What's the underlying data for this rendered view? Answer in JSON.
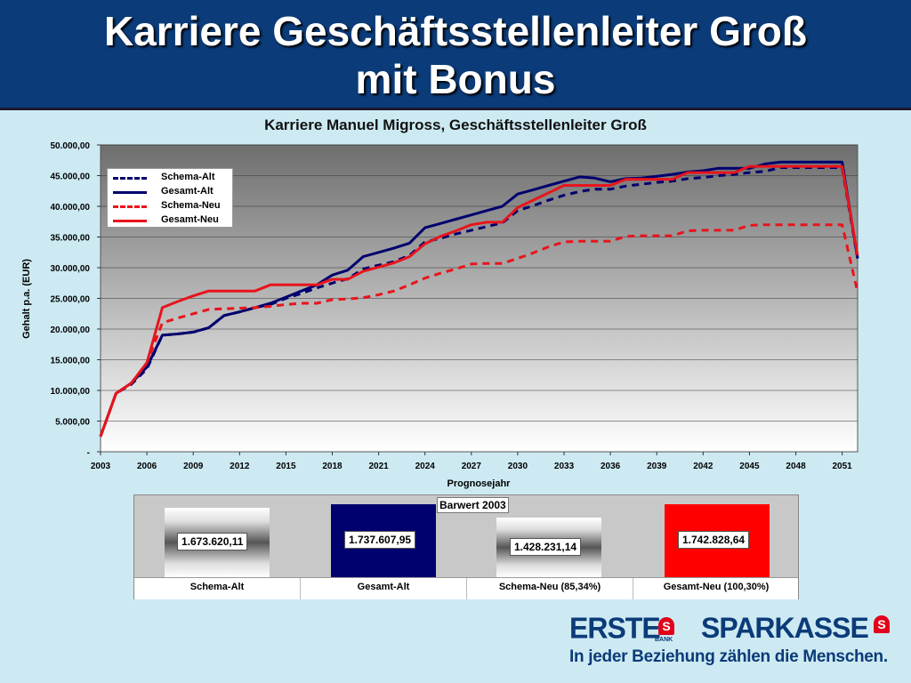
{
  "slide": {
    "title_line1": "Karriere Geschäftsstellenleiter Groß",
    "title_line2": "mit Bonus"
  },
  "colors": {
    "header_bg": "#0b3b78",
    "slide_bg": "#cdeaf3",
    "navy": "#00006e",
    "red": "#e8141c"
  },
  "chart_data": [
    {
      "type": "line",
      "title": "Karriere Manuel Migross, Geschäftsstellenleiter Groß",
      "xlabel": "Prognosejahr",
      "ylabel": "Gehalt p.a. (EUR)",
      "ylim": [
        0,
        50000
      ],
      "xlim": [
        2003,
        2052
      ],
      "x_ticks": [
        "2003",
        "2006",
        "2009",
        "2012",
        "2015",
        "2018",
        "2021",
        "2024",
        "2027",
        "2030",
        "2033",
        "2036",
        "2039",
        "2042",
        "2045",
        "2048",
        "2051"
      ],
      "y_ticks": [
        "-",
        "5.000,00",
        "10.000,00",
        "15.000,00",
        "20.000,00",
        "25.000,00",
        "30.000,00",
        "35.000,00",
        "40.000,00",
        "45.000,00",
        "50.000,00"
      ],
      "grid": true,
      "legend_position": "top-left",
      "x": [
        2003,
        2004,
        2005,
        2006,
        2007,
        2008,
        2009,
        2010,
        2011,
        2012,
        2013,
        2014,
        2015,
        2016,
        2017,
        2018,
        2019,
        2020,
        2021,
        2022,
        2023,
        2024,
        2025,
        2026,
        2027,
        2028,
        2029,
        2030,
        2031,
        2032,
        2033,
        2034,
        2035,
        2036,
        2037,
        2038,
        2039,
        2040,
        2041,
        2042,
        2043,
        2044,
        2045,
        2046,
        2047,
        2048,
        2049,
        2050,
        2051,
        2052
      ],
      "series": [
        {
          "name": "Schema-Alt",
          "style": "dashed",
          "color": "#00006e",
          "values": [
            2500,
            9500,
            11000,
            13500,
            19000,
            19200,
            19500,
            20200,
            22200,
            22800,
            23500,
            24000,
            25000,
            25800,
            26700,
            27500,
            28200,
            29800,
            30400,
            31000,
            32000,
            34200,
            34800,
            35500,
            36100,
            36700,
            37300,
            39300,
            40100,
            41000,
            41800,
            42400,
            42800,
            42800,
            43300,
            43600,
            43900,
            44100,
            44500,
            44700,
            45000,
            45200,
            45500,
            45700,
            46300,
            46300,
            46300,
            46300,
            46300,
            31500
          ]
        },
        {
          "name": "Gesamt-Alt",
          "style": "solid",
          "color": "#00006e",
          "values": [
            2500,
            9500,
            11200,
            13800,
            19000,
            19200,
            19500,
            20200,
            22200,
            22800,
            23500,
            24200,
            25200,
            26200,
            27200,
            28800,
            29600,
            31800,
            32500,
            33200,
            34000,
            36500,
            37200,
            37900,
            38600,
            39300,
            40000,
            42000,
            42700,
            43400,
            44100,
            44800,
            44600,
            44000,
            44500,
            44600,
            44900,
            45200,
            45600,
            45800,
            46200,
            46200,
            46200,
            46900,
            47200,
            47200,
            47200,
            47200,
            47200,
            31500
          ]
        },
        {
          "name": "Schema-Neu",
          "style": "dashed",
          "color": "#e8141c",
          "values": [
            2500,
            9500,
            11200,
            14500,
            21000,
            21800,
            22500,
            23200,
            23300,
            23400,
            23500,
            23700,
            24000,
            24200,
            24200,
            24800,
            24900,
            25100,
            25600,
            26200,
            27200,
            28300,
            29100,
            29800,
            30600,
            30700,
            30700,
            31500,
            32400,
            33400,
            34200,
            34300,
            34300,
            34300,
            35100,
            35200,
            35200,
            35200,
            36000,
            36100,
            36100,
            36100,
            36900,
            37000,
            37000,
            37000,
            37000,
            37000,
            37000,
            26000
          ]
        },
        {
          "name": "Gesamt-Neu",
          "style": "solid",
          "color": "#e8141c",
          "values": [
            2500,
            9500,
            11200,
            14500,
            23500,
            24500,
            25400,
            26200,
            26200,
            26200,
            26200,
            27200,
            27200,
            27200,
            27200,
            28100,
            28100,
            29400,
            30100,
            30800,
            31800,
            33900,
            35100,
            36000,
            37000,
            37400,
            37400,
            39800,
            41000,
            42200,
            43400,
            43400,
            43400,
            43400,
            44400,
            44400,
            44400,
            44400,
            45500,
            45500,
            45500,
            45500,
            46500,
            46500,
            46500,
            46500,
            46500,
            46500,
            46500,
            32000
          ]
        }
      ]
    },
    {
      "type": "bar",
      "title": "Barwert 2003",
      "categories": [
        "Schema-Alt",
        "Gesamt-Alt",
        "Schema-Neu (85,34%)",
        "Gesamt-Neu (100,30%)"
      ],
      "values": [
        1673620.11,
        1737607.95,
        1428231.14,
        1742828.64
      ],
      "value_labels": [
        "1.673.620,11",
        "1.737.607,95",
        "1.428.231,14",
        "1.742.828,64"
      ],
      "colors": [
        "#ffffff",
        "#00006e",
        "#ffffff",
        "#e8141c"
      ]
    }
  ],
  "logo": {
    "erste": "ERSTE",
    "bank": "BANK",
    "sparkasse": "SPARKASSE",
    "s_symbol": "S",
    "slogan": "In jeder Beziehung zählen die Menschen."
  }
}
